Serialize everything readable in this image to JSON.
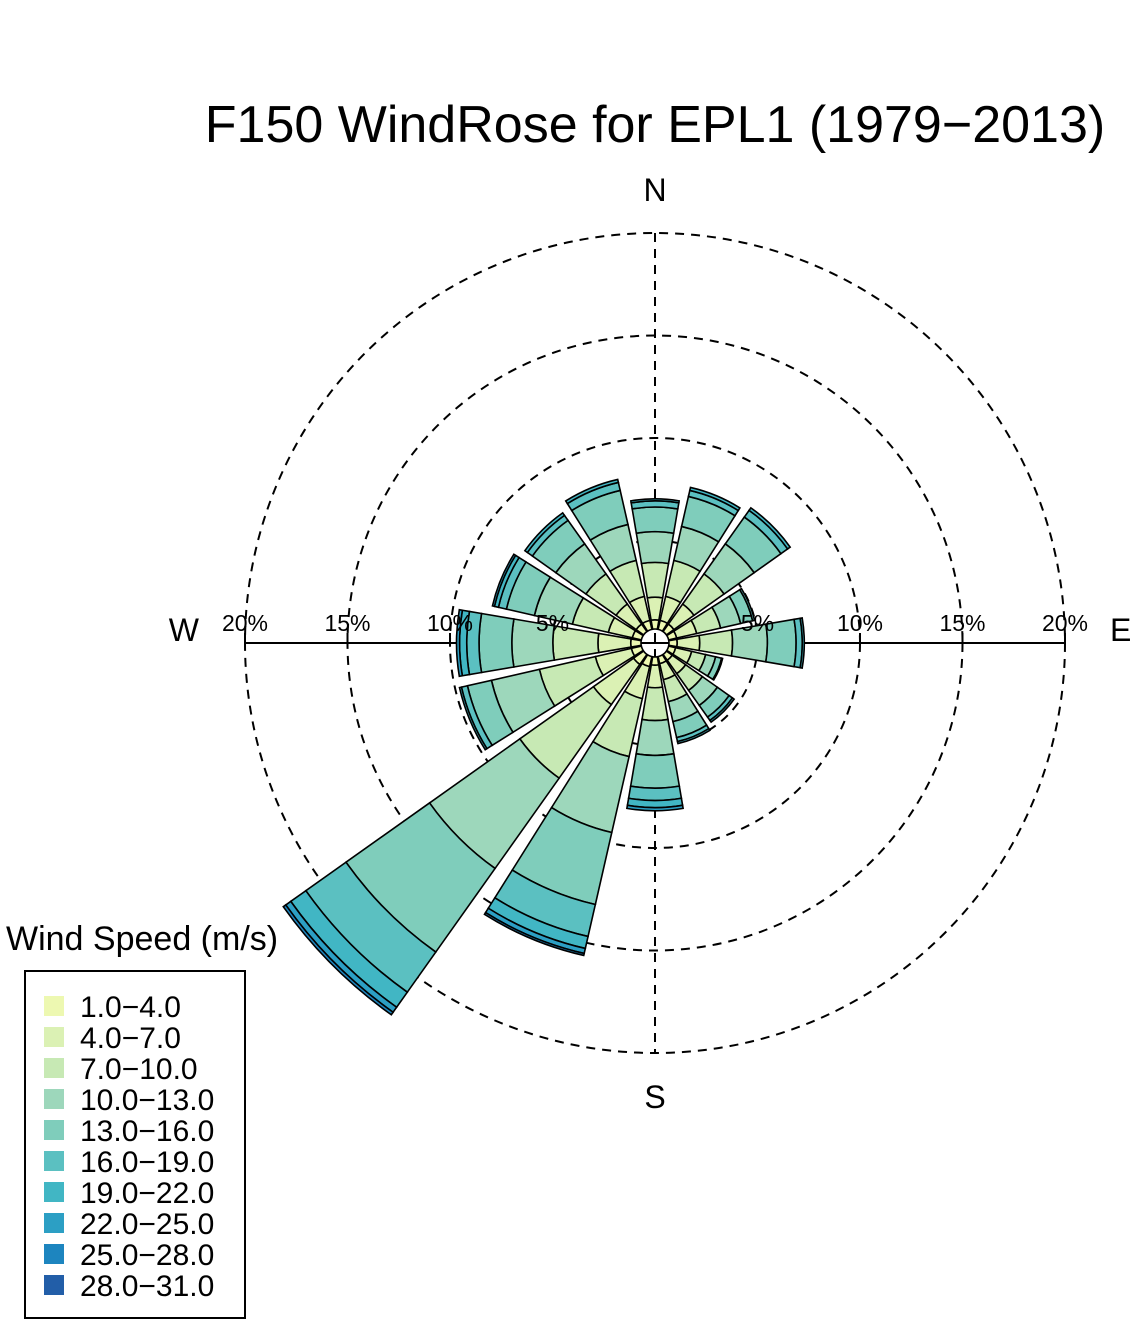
{
  "chart_data": {
    "type": "windrose",
    "title": "F150 WindRose for EPL1 (1979−2013)",
    "compass": [
      "N",
      "E",
      "S",
      "W"
    ],
    "rings": [
      5,
      10,
      15,
      20
    ],
    "ring_labels": [
      "5%",
      "10%",
      "15%",
      "20%"
    ],
    "legend_title": "Wind Speed (m/s)",
    "speed_bins": [
      {
        "label": "1.0−4.0",
        "color": "#edf8b1"
      },
      {
        "label": "4.0−7.0",
        "color": "#dbf1b4"
      },
      {
        "label": "7.0−10.0",
        "color": "#c7e9b4"
      },
      {
        "label": "10.0−13.0",
        "color": "#9dd7bb"
      },
      {
        "label": "13.0−16.0",
        "color": "#7fcdbb"
      },
      {
        "label": "16.0−19.0",
        "color": "#5bc0c1"
      },
      {
        "label": "19.0−22.0",
        "color": "#41b6c4"
      },
      {
        "label": "22.0−25.0",
        "color": "#2c9fc4"
      },
      {
        "label": "25.0−28.0",
        "color": "#1d85bf"
      },
      {
        "label": "28.0−31.0",
        "color": "#225ea8"
      }
    ],
    "directions": [
      "N",
      "NNE",
      "NE",
      "ENE",
      "E",
      "ESE",
      "SE",
      "SSE",
      "S",
      "SSW",
      "SW",
      "WSW",
      "W",
      "WNW",
      "NW",
      "NNW"
    ],
    "frequencies": [
      [
        0.45,
        1.1,
        1.7,
        1.5,
        1.2,
        0.3,
        0.1,
        0,
        0,
        0
      ],
      [
        0.45,
        1.2,
        1.8,
        1.7,
        1.5,
        0.3,
        0.15,
        0,
        0,
        0
      ],
      [
        0.45,
        1.2,
        1.8,
        1.8,
        1.6,
        0.4,
        0.15,
        0,
        0,
        0
      ],
      [
        0.4,
        1.0,
        1.2,
        1.0,
        0.6,
        0.1,
        0,
        0,
        0,
        0
      ],
      [
        0.4,
        1.1,
        1.6,
        1.7,
        1.4,
        0.3,
        0.1,
        0,
        0,
        0
      ],
      [
        0.35,
        0.8,
        0.7,
        0.5,
        0.3,
        0.05,
        0,
        0,
        0,
        0
      ],
      [
        0.35,
        0.8,
        1.0,
        0.9,
        0.7,
        0.2,
        0.1,
        0,
        0,
        0
      ],
      [
        0.35,
        0.8,
        1.1,
        1.0,
        0.8,
        0.2,
        0.1,
        0,
        0,
        0
      ],
      [
        0.4,
        1.1,
        1.6,
        1.7,
        1.6,
        0.6,
        0.35,
        0.15,
        0,
        0
      ],
      [
        0.5,
        1.6,
        2.9,
        3.8,
        3.6,
        1.6,
        0.6,
        0.25,
        0.1,
        0
      ],
      [
        0.6,
        2.4,
        4.4,
        5.4,
        5.0,
        2.4,
        0.9,
        0.3,
        0.15,
        0
      ],
      [
        0.5,
        1.8,
        2.8,
        2.4,
        1.2,
        0.3,
        0.1,
        0,
        0,
        0
      ],
      [
        0.5,
        1.6,
        2.2,
        2.0,
        1.6,
        0.6,
        0.35,
        0.15,
        0,
        0
      ],
      [
        0.45,
        1.2,
        1.8,
        1.9,
        1.4,
        0.4,
        0.2,
        0.1,
        0,
        0
      ],
      [
        0.45,
        1.2,
        1.8,
        1.8,
        1.4,
        0.3,
        0.15,
        0,
        0,
        0
      ],
      [
        0.45,
        1.2,
        1.8,
        1.8,
        1.7,
        0.4,
        0.15,
        0,
        0,
        0
      ]
    ]
  }
}
